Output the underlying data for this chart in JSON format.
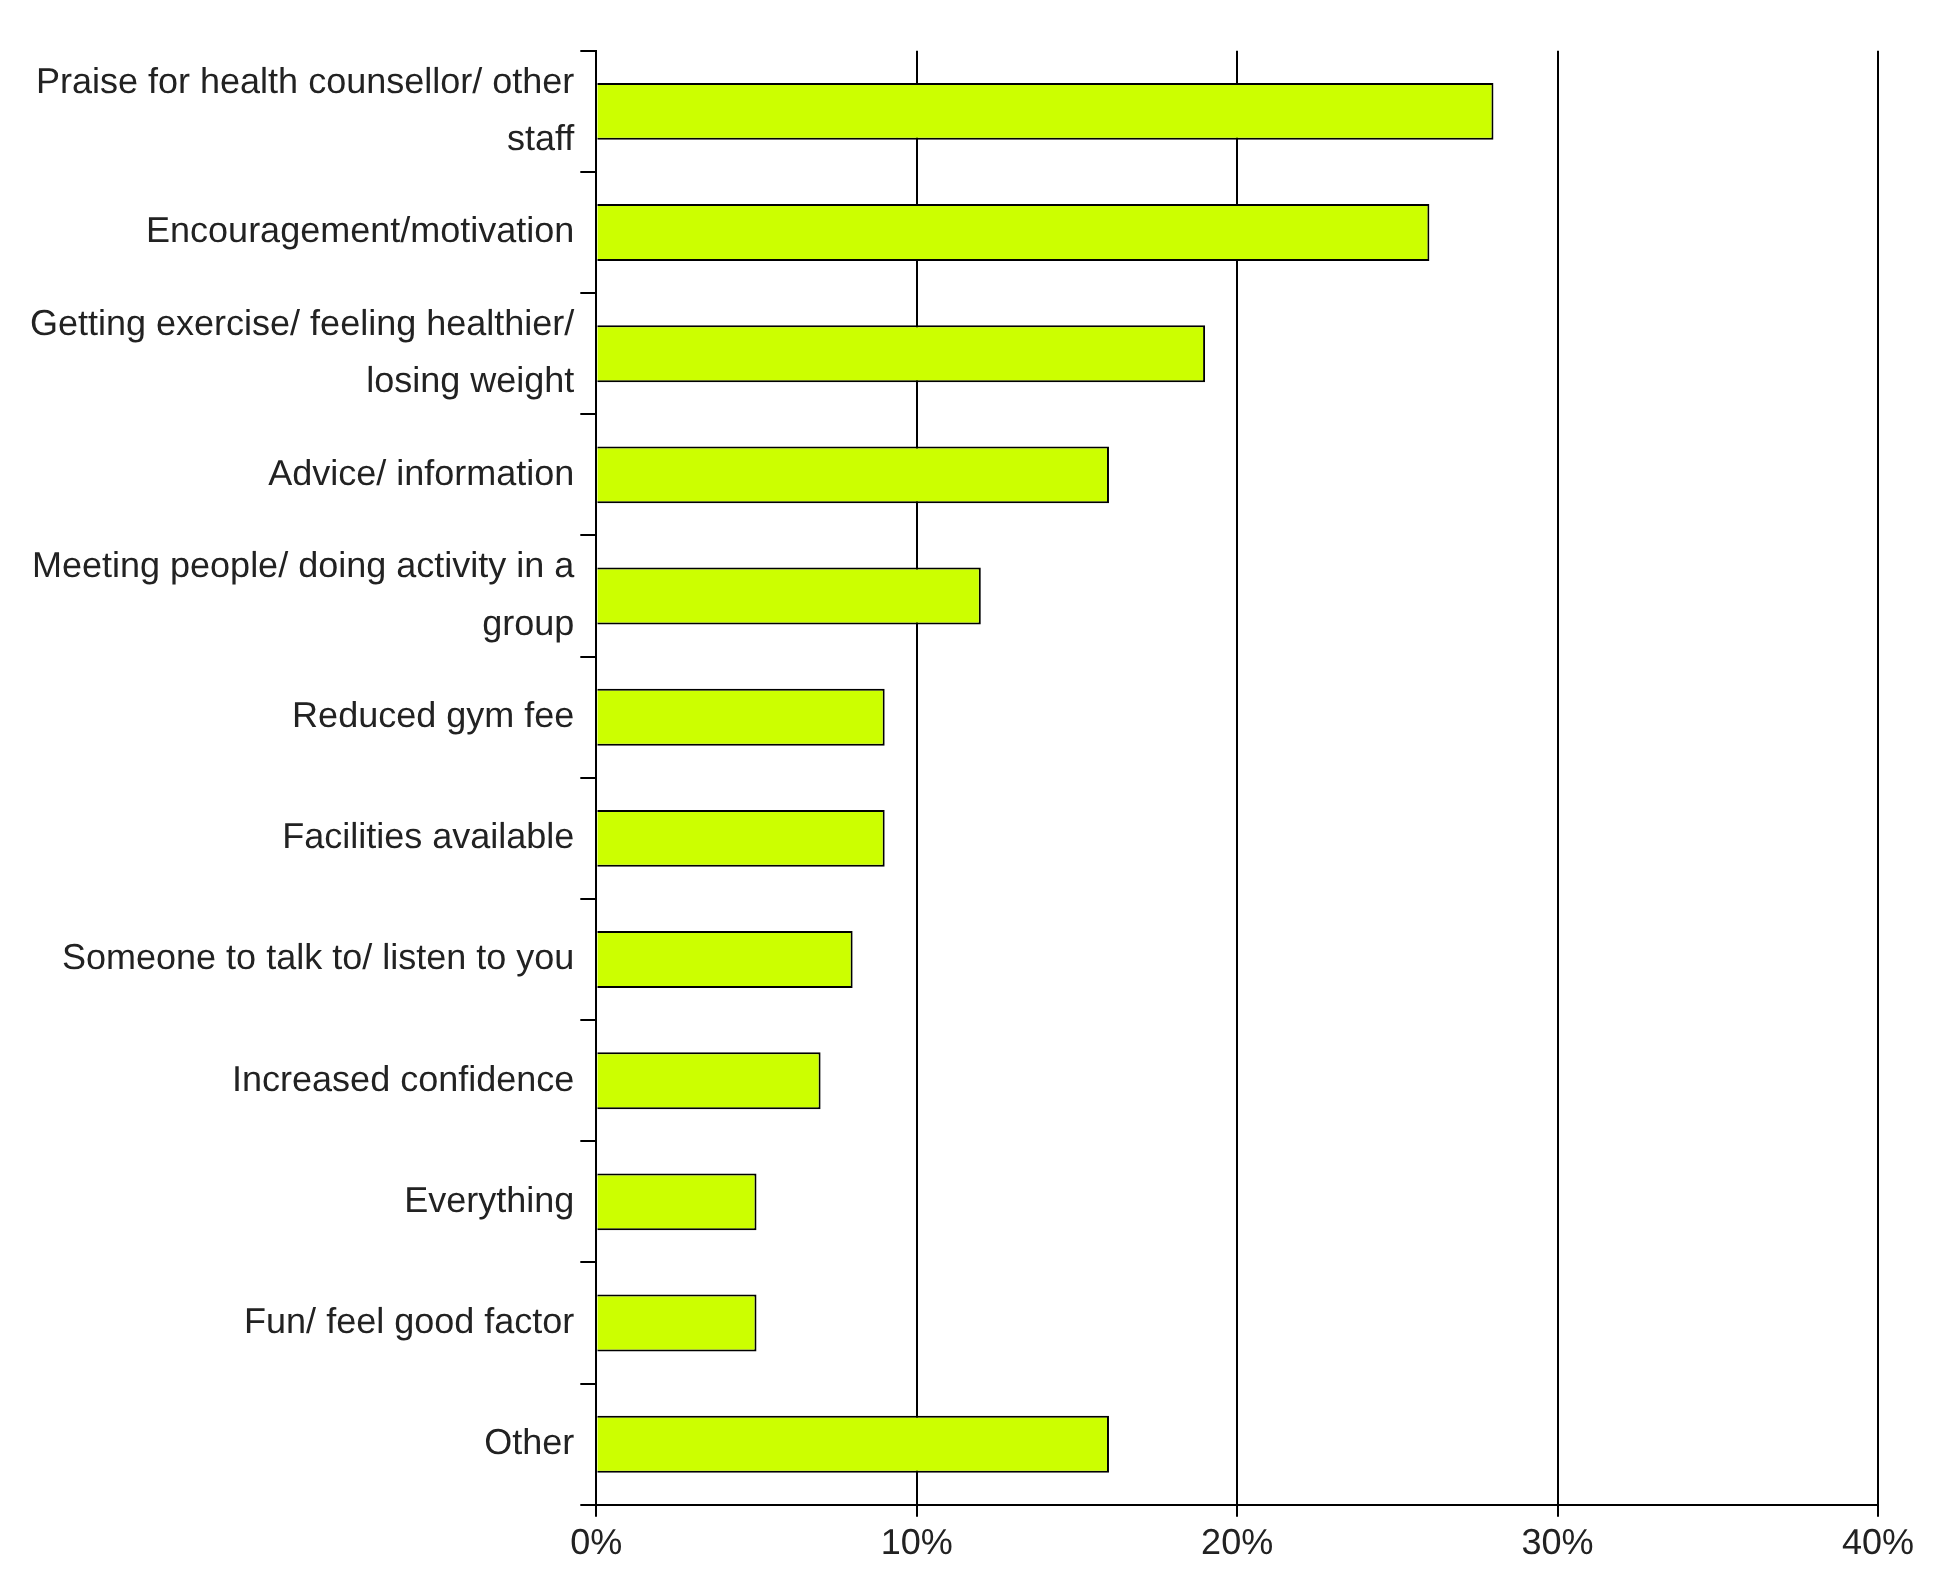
{
  "chart_data": {
    "type": "bar",
    "orientation": "horizontal",
    "categories": [
      "Praise for health counsellor/ other staff",
      "Encouragement/motivation",
      "Getting exercise/ feeling healthier/ losing weight",
      "Advice/ information",
      "Meeting people/ doing activity in a group",
      "Reduced gym fee",
      "Facilities available",
      "Someone to talk to/ listen to you",
      "Increased confidence",
      "Everything",
      "Fun/ feel good factor",
      "Other"
    ],
    "values": [
      28,
      26,
      19,
      16,
      12,
      9,
      9,
      8,
      7,
      5,
      5,
      16
    ],
    "color": "#ccff00",
    "xlim": [
      0,
      40
    ],
    "xticks": [
      {
        "value": 0,
        "label": "0%"
      },
      {
        "value": 10,
        "label": "10%"
      },
      {
        "value": 20,
        "label": "20%"
      },
      {
        "value": 30,
        "label": "30%"
      },
      {
        "value": 40,
        "label": "40%"
      }
    ],
    "grid": "x",
    "legend": false
  }
}
